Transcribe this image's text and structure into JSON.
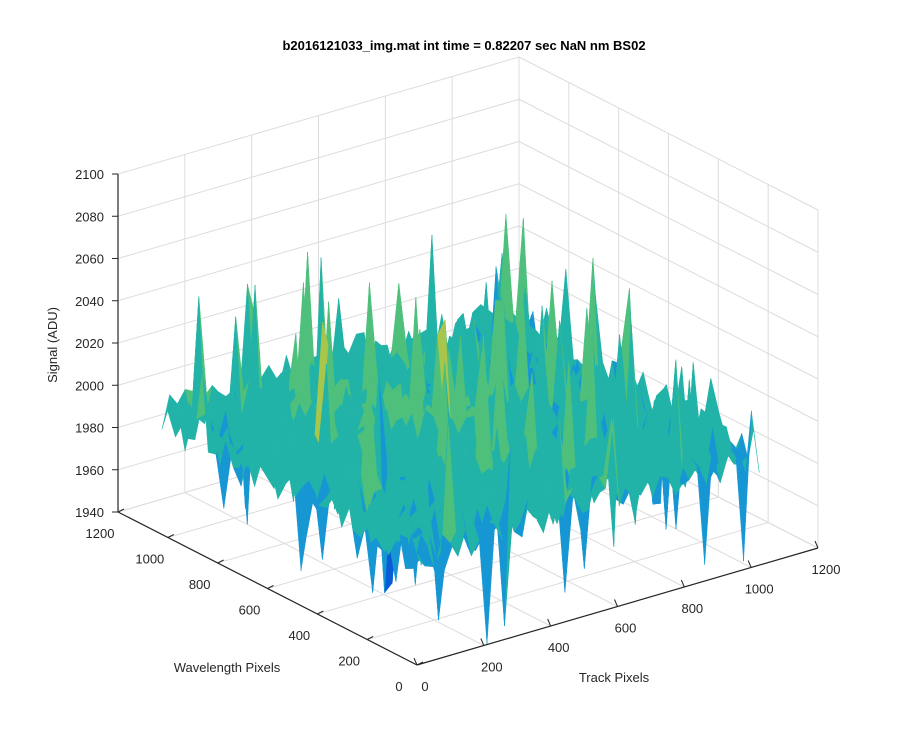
{
  "chart_data": {
    "type": "surface",
    "title": "b2016121033_img.mat int time = 0.82207 sec  NaN nm BS02",
    "xlabel": "Track Pixels",
    "ylabel": "Wavelength Pixels",
    "zlabel": "Signal (ADU)",
    "xlim": [
      0,
      1200
    ],
    "ylim": [
      0,
      1200
    ],
    "zlim": [
      1940,
      2100
    ],
    "xticks": [
      "0",
      "200",
      "400",
      "600",
      "800",
      "1000",
      "1200"
    ],
    "yticks": [
      "0",
      "200",
      "400",
      "600",
      "800",
      "1000",
      "1200"
    ],
    "zticks": [
      "1940",
      "1960",
      "1980",
      "2000",
      "2020",
      "2040",
      "2060",
      "2080",
      "2100"
    ],
    "data_extent": {
      "x": [
        0,
        1024
      ],
      "y": [
        0,
        1024
      ]
    },
    "signal_baseline": 1995,
    "signal_peak_approx": 2080,
    "signal_min_approx": 1940,
    "colormap": [
      "#0b5bd6",
      "#1697d4",
      "#22b3a8",
      "#4fc07c",
      "#a9c64c",
      "#e3c13a"
    ],
    "grid": true,
    "view": "3d-default"
  }
}
